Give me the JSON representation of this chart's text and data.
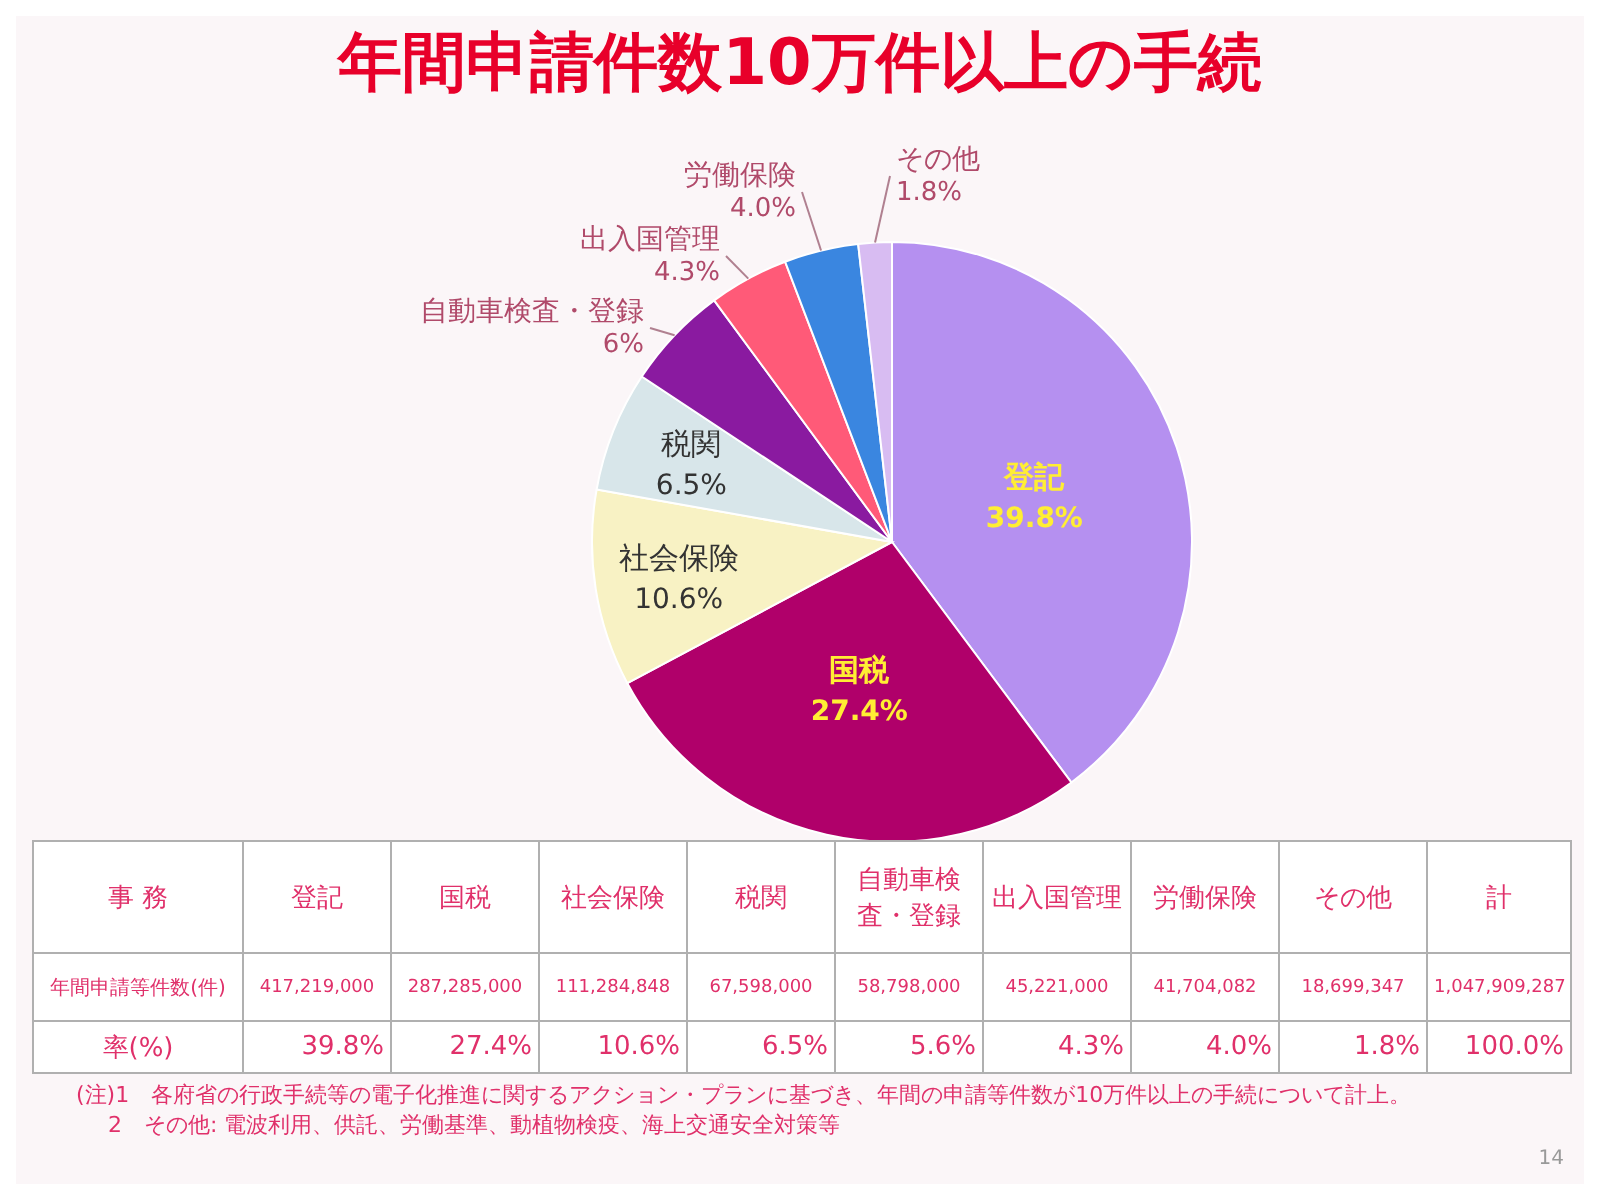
{
  "chart_data": {
    "type": "pie",
    "title": "年間申請件数10万件以上の手続",
    "categories": [
      "登記",
      "国税",
      "社会保険",
      "税関",
      "自動車検査・登録",
      "出入国管理",
      "労働保険",
      "その他"
    ],
    "values": [
      39.8,
      27.4,
      10.6,
      6.5,
      5.6,
      4.3,
      4.0,
      1.8
    ],
    "value_labels": [
      "39.8%",
      "27.4%",
      "10.6%",
      "6.5%",
      "6%",
      "4.3%",
      "4.0%",
      "1.8%"
    ],
    "colors": [
      "#b590f0",
      "#b0006a",
      "#f8f2c4",
      "#d8e6ea",
      "#8a1aa0",
      "#ff5a78",
      "#3a86e0",
      "#d8bcf2"
    ],
    "annotations": [
      "事 務",
      "年間申請等件数(件)",
      "率(%)",
      "計",
      "417,219,000",
      "287,285,000",
      "111,284,848",
      "67,598,000",
      "58,798,000",
      "45,221,000",
      "41,704,082",
      "18,699,347",
      "1,047,909,287",
      "39.8%",
      "27.4%",
      "10.6%",
      "6.5%",
      "5.6%",
      "4.3%",
      "4.0%",
      "1.8%",
      "100.0%",
      "(注)1　各府省の行政手続等の電子化推進に関するアクション・プランに基づき、年間の申請等件数が10万件以上の手続について計上。",
      "2　その他: 電波利用、供託、労働基準、動植物検疫、海上交通安全対策等",
      "14"
    ]
  }
}
